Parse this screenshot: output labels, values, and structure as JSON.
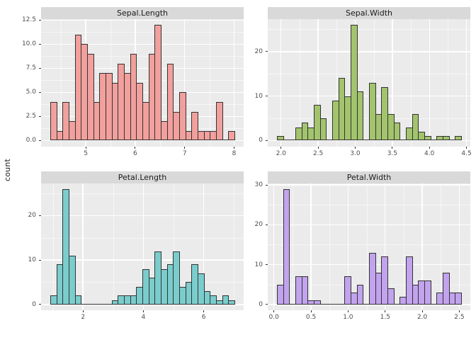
{
  "figure": {
    "y_axis_label": "count",
    "background": "#FFFFFF",
    "panel_background": "#EBEBEB",
    "strip_background": "#D9D9D9",
    "grid_color": "#FFFFFF",
    "bar_border_color": "#333333",
    "axis_text_color": "#4D4D4D",
    "strip_text_color": "#1A1A1A"
  },
  "chart_data": [
    {
      "type": "bar",
      "title": "Sepal.Length",
      "ylabel": "count",
      "fill": "#F2A09D",
      "bin_start": 4.2828,
      "bin_width": 0.124138,
      "counts": [
        4,
        1,
        4,
        2,
        11,
        10,
        9,
        4,
        7,
        7,
        6,
        8,
        7,
        9,
        6,
        4,
        9,
        12,
        2,
        8,
        3,
        5,
        1,
        3,
        1,
        1,
        1,
        4,
        0,
        1
      ],
      "xlim": [
        4.0966,
        8.1931
      ],
      "ylim": [
        -0.6,
        12.6
      ],
      "xticks": [
        {
          "v": 5,
          "label": "5"
        },
        {
          "v": 6,
          "label": "6"
        },
        {
          "v": 7,
          "label": "7"
        },
        {
          "v": 8,
          "label": "8"
        }
      ],
      "yticks": [
        {
          "v": 0,
          "label": "0.0"
        },
        {
          "v": 2.5,
          "label": "2.5"
        },
        {
          "v": 5,
          "label": "5.0"
        },
        {
          "v": 7.5,
          "label": "7.5"
        },
        {
          "v": 10,
          "label": "10.0"
        },
        {
          "v": 12.5,
          "label": "12.5"
        }
      ]
    },
    {
      "type": "bar",
      "title": "Sepal.Width",
      "ylabel": "count",
      "fill": "#A3C46D",
      "bin_start": 1.944828,
      "bin_width": 0.082759,
      "counts": [
        1,
        0,
        0,
        3,
        4,
        3,
        8,
        5,
        0,
        9,
        14,
        10,
        26,
        11,
        0,
        13,
        6,
        12,
        6,
        4,
        0,
        3,
        6,
        2,
        1,
        0,
        1,
        1,
        0,
        1
      ],
      "xlim": [
        1.8207,
        4.5517
      ],
      "ylim": [
        -1.3,
        27.3
      ],
      "xticks": [
        {
          "v": 2.0,
          "label": "2.0"
        },
        {
          "v": 2.5,
          "label": "2.5"
        },
        {
          "v": 3.0,
          "label": "3.0"
        },
        {
          "v": 3.5,
          "label": "3.5"
        },
        {
          "v": 4.0,
          "label": "4.0"
        },
        {
          "v": 4.5,
          "label": "4.5"
        }
      ],
      "yticks": [
        {
          "v": 0,
          "label": "0"
        },
        {
          "v": 10,
          "label": "10"
        },
        {
          "v": 20,
          "label": "20"
        }
      ]
    },
    {
      "type": "bar",
      "title": "Petal.Length",
      "ylabel": "count",
      "fill": "#7BCDCD",
      "bin_start": 0.915517,
      "bin_width": 0.203448,
      "counts": [
        2,
        9,
        26,
        11,
        2,
        0,
        0,
        0,
        0,
        0,
        1,
        2,
        2,
        2,
        4,
        8,
        6,
        12,
        8,
        9,
        12,
        4,
        5,
        9,
        7,
        3,
        2,
        1,
        2,
        1
      ],
      "xlim": [
        0.6103,
        7.3241
      ],
      "ylim": [
        -1.3,
        27.3
      ],
      "xticks": [
        {
          "v": 2,
          "label": "2"
        },
        {
          "v": 4,
          "label": "4"
        },
        {
          "v": 6,
          "label": "6"
        }
      ],
      "yticks": [
        {
          "v": 0,
          "label": "0"
        },
        {
          "v": 10,
          "label": "10"
        },
        {
          "v": 20,
          "label": "20"
        }
      ]
    },
    {
      "type": "bar",
      "title": "Petal.Width",
      "ylabel": "count",
      "fill": "#C2A3EE",
      "bin_start": 0.041379,
      "bin_width": 0.082759,
      "counts": [
        5,
        29,
        0,
        7,
        7,
        1,
        1,
        0,
        0,
        0,
        0,
        7,
        3,
        5,
        0,
        13,
        8,
        12,
        4,
        0,
        2,
        12,
        5,
        6,
        6,
        0,
        3,
        8,
        3,
        3
      ],
      "xlim": [
        -0.0828,
        2.6483
      ],
      "ylim": [
        -1.45,
        30.45
      ],
      "xticks": [
        {
          "v": 0.0,
          "label": "0.0"
        },
        {
          "v": 0.5,
          "label": "0.5"
        },
        {
          "v": 1.0,
          "label": "1.0"
        },
        {
          "v": 1.5,
          "label": "1.5"
        },
        {
          "v": 2.0,
          "label": "2.0"
        },
        {
          "v": 2.5,
          "label": "2.5"
        }
      ],
      "yticks": [
        {
          "v": 0,
          "label": "0"
        },
        {
          "v": 10,
          "label": "10"
        },
        {
          "v": 20,
          "label": "20"
        },
        {
          "v": 30,
          "label": "30"
        }
      ]
    }
  ]
}
